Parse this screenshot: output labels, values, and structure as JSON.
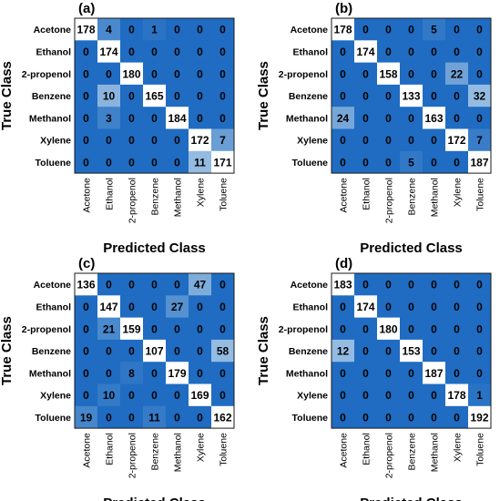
{
  "colors": {
    "cell_min": "#1f6cc2",
    "cell_max": "#a9c9e6",
    "diag": "#ffffff",
    "text": "#000000"
  },
  "chart_data": [
    {
      "type": "heatmap",
      "panel_label": "(a)",
      "xlabel": "Predicted Class",
      "ylabel": "True Class",
      "x_categories": [
        "Acetone",
        "Ethanol",
        "2-propenol",
        "Benzene",
        "Methanol",
        "Xylene",
        "Toluene"
      ],
      "y_categories": [
        "Acetone",
        "Ethanol",
        "2-propenol",
        "Benzene",
        "Methanol",
        "Xylene",
        "Toluene"
      ],
      "values": [
        [
          178,
          4,
          0,
          1,
          0,
          0,
          0
        ],
        [
          0,
          174,
          0,
          0,
          0,
          0,
          0
        ],
        [
          0,
          0,
          180,
          0,
          0,
          0,
          0
        ],
        [
          0,
          10,
          0,
          165,
          0,
          0,
          0
        ],
        [
          0,
          3,
          0,
          0,
          184,
          0,
          0
        ],
        [
          0,
          0,
          0,
          0,
          0,
          172,
          7
        ],
        [
          0,
          0,
          0,
          0,
          0,
          11,
          171
        ]
      ]
    },
    {
      "type": "heatmap",
      "panel_label": "(b)",
      "xlabel": "Predicted Class",
      "ylabel": "True Class",
      "x_categories": [
        "Acetone",
        "Ethanol",
        "2-propenol",
        "Benzene",
        "Methanol",
        "Xylene",
        "Toluene"
      ],
      "y_categories": [
        "Acetone",
        "Ethanol",
        "2-propenol",
        "Benzene",
        "Methanol",
        "Xylene",
        "Toluene"
      ],
      "values": [
        [
          178,
          0,
          0,
          0,
          5,
          0,
          0
        ],
        [
          0,
          174,
          0,
          0,
          0,
          0,
          0
        ],
        [
          0,
          0,
          158,
          0,
          0,
          22,
          0
        ],
        [
          0,
          0,
          0,
          133,
          0,
          0,
          32
        ],
        [
          24,
          0,
          0,
          0,
          163,
          0,
          0
        ],
        [
          0,
          0,
          0,
          0,
          0,
          172,
          7
        ],
        [
          0,
          0,
          0,
          5,
          0,
          0,
          187
        ]
      ]
    },
    {
      "type": "heatmap",
      "panel_label": "(c)",
      "xlabel": "Predicted Class",
      "ylabel": "True Class",
      "x_categories": [
        "Acetone",
        "Ethanol",
        "2-propenol",
        "Benzene",
        "Methanol",
        "Xylene",
        "Toluene"
      ],
      "y_categories": [
        "Acetone",
        "Ethanol",
        "2-propenol",
        "Benzene",
        "Methanol",
        "Xylene",
        "Toluene"
      ],
      "values": [
        [
          136,
          0,
          0,
          0,
          0,
          47,
          0
        ],
        [
          0,
          147,
          0,
          0,
          27,
          0,
          0
        ],
        [
          0,
          21,
          159,
          0,
          0,
          0,
          0
        ],
        [
          0,
          0,
          0,
          107,
          0,
          0,
          58
        ],
        [
          0,
          0,
          8,
          0,
          179,
          0,
          0
        ],
        [
          0,
          10,
          0,
          0,
          0,
          169,
          0
        ],
        [
          19,
          0,
          0,
          11,
          0,
          0,
          162
        ]
      ]
    },
    {
      "type": "heatmap",
      "panel_label": "(d)",
      "xlabel": "Predicted Class",
      "ylabel": "True Class",
      "x_categories": [
        "Acetone",
        "Ethanol",
        "2-propenol",
        "Benzene",
        "Methanol",
        "Xylene",
        "Toluene"
      ],
      "y_categories": [
        "Acetone",
        "Ethanol",
        "2-propenol",
        "Benzene",
        "Methanol",
        "Xylene",
        "Toluene"
      ],
      "values": [
        [
          183,
          0,
          0,
          0,
          0,
          0,
          0
        ],
        [
          0,
          174,
          0,
          0,
          0,
          0,
          0
        ],
        [
          0,
          0,
          180,
          0,
          0,
          0,
          0
        ],
        [
          12,
          0,
          0,
          153,
          0,
          0,
          0
        ],
        [
          0,
          0,
          0,
          0,
          187,
          0,
          0
        ],
        [
          0,
          0,
          0,
          0,
          0,
          178,
          1
        ],
        [
          0,
          0,
          0,
          0,
          0,
          0,
          192
        ]
      ]
    }
  ]
}
